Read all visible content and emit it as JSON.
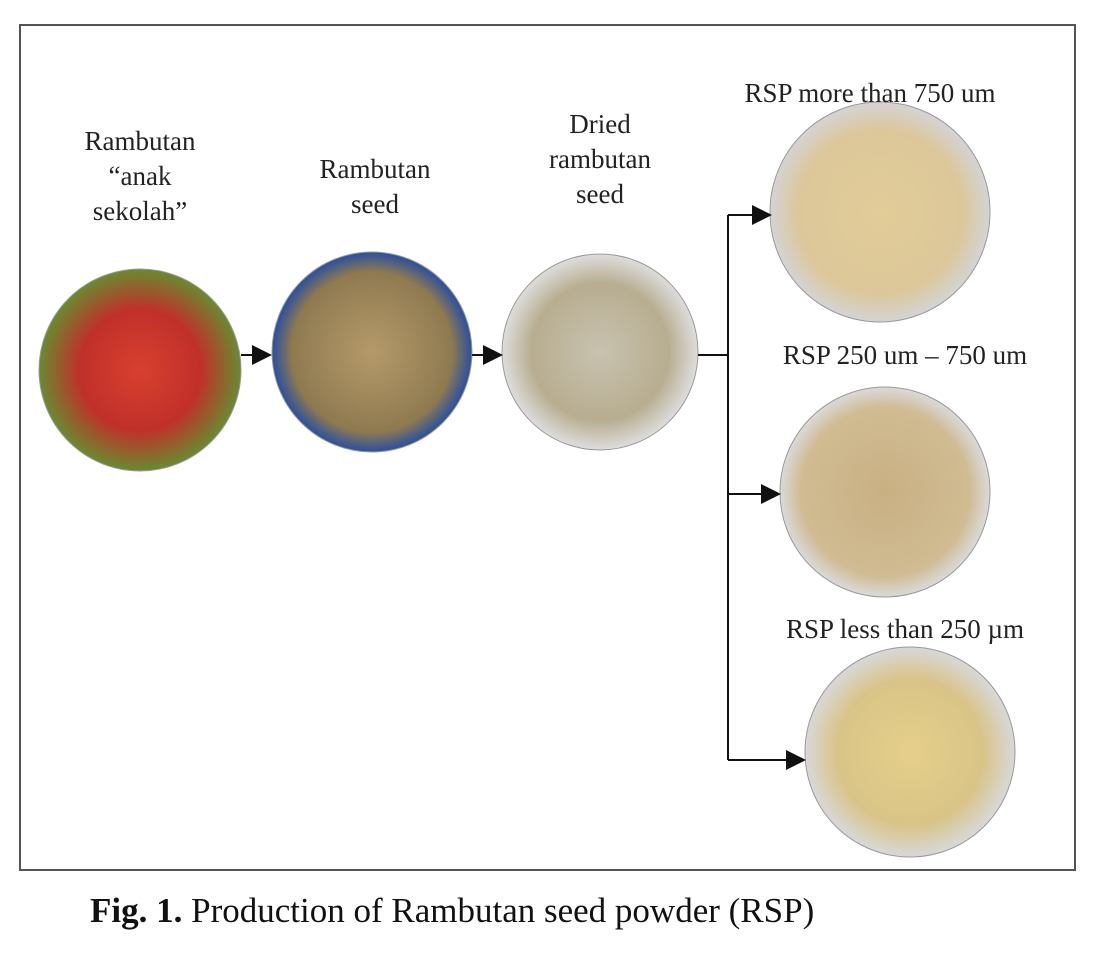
{
  "nodes": [
    {
      "label_lines": [
        "Rambutan",
        "“anak",
        "sekolah”"
      ]
    },
    {
      "label_lines": [
        "Rambutan",
        "seed"
      ]
    },
    {
      "label_lines": [
        "Dried",
        "rambutan",
        "seed"
      ]
    },
    {
      "label_lines": [
        "RSP more than 750 um"
      ]
    },
    {
      "label_lines": [
        "RSP 250 um – 750 um"
      ]
    },
    {
      "label_lines": [
        "RSP less than 250 µm"
      ]
    }
  ],
  "caption": {
    "label": "Fig. 1.",
    "text": "Production of Rambutan seed powder (RSP)"
  }
}
